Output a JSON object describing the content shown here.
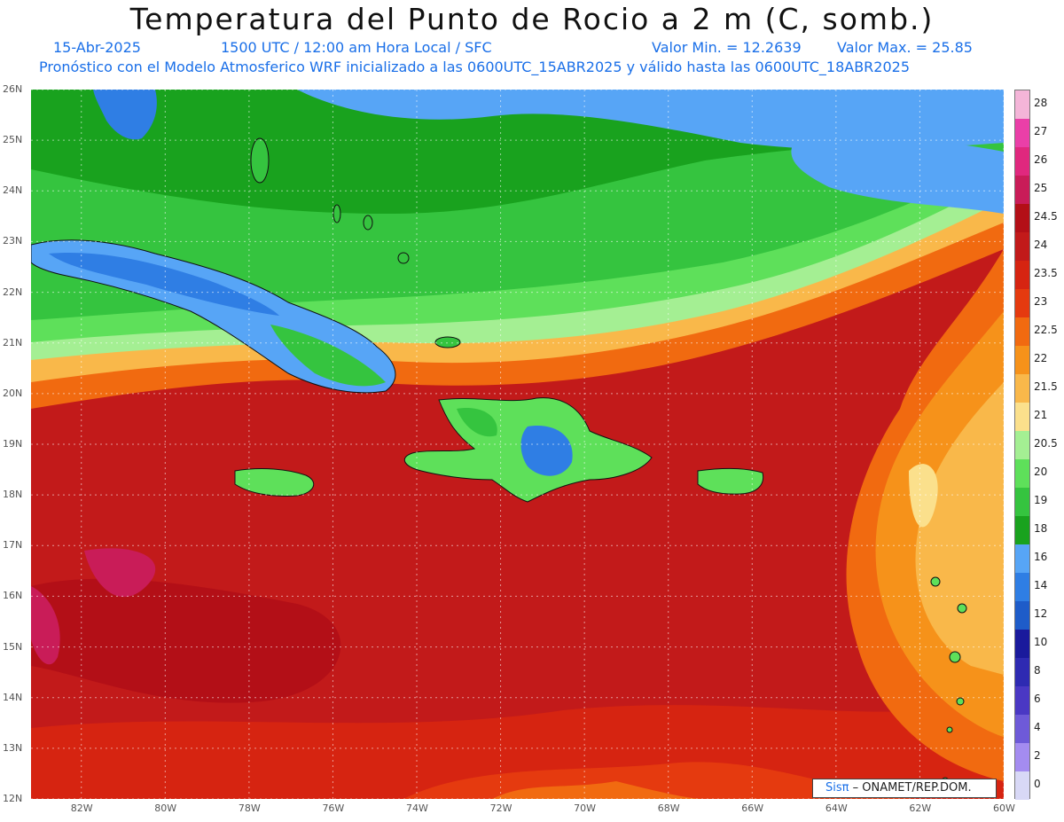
{
  "header": {
    "title": "Temperatura del Punto de Rocio a 2 m (C, somb.)",
    "date": "15-Abr-2025",
    "time": "1500 UTC / 12:00 am Hora Local / SFC",
    "min_label": "Valor Min. = 12.2639",
    "max_label": "Valor Max. = 25.85",
    "model_line": "Pronóstico con el Modelo Atmosferico WRF inicializado a las 0600UTC_15ABR2025 y válido hasta las  0600UTC_18ABR2025"
  },
  "map": {
    "lat_ticks": [
      "26N",
      "25N",
      "24N",
      "23N",
      "22N",
      "21N",
      "20N",
      "19N",
      "18N",
      "17N",
      "16N",
      "15N",
      "14N",
      "13N",
      "12N"
    ],
    "lon_ticks": [
      "82W",
      "80W",
      "78W",
      "76W",
      "74W",
      "72W",
      "70W",
      "68W",
      "66W",
      "64W",
      "62W",
      "60W"
    ],
    "lat_range": [
      12,
      26
    ],
    "lon_range": [
      -83.2,
      -60
    ],
    "grid": "dotted",
    "features": {
      "cuba": "Cuba",
      "hispaniola": "Hispaniola",
      "jamaica": "Jamaica",
      "puerto_rico": "Puerto Rico"
    }
  },
  "legend": {
    "labels": [
      "28",
      "27",
      "26",
      "25",
      "24.5",
      "24",
      "23.5",
      "23",
      "22.5",
      "22",
      "21.5",
      "21",
      "20.5",
      "20",
      "19",
      "18",
      "16",
      "14",
      "12",
      "10",
      "8",
      "6",
      "4",
      "2",
      "0"
    ],
    "colors": [
      "#f4b5d8",
      "#ea3fa8",
      "#e0287e",
      "#c91c58",
      "#b30f17",
      "#c21a1a",
      "#d62411",
      "#e53a0f",
      "#f16a10",
      "#f6921a",
      "#f9b84a",
      "#fbe08c",
      "#a4ef93",
      "#5ee05a",
      "#35c43f",
      "#19a21e",
      "#57a5f6",
      "#2f7ee4",
      "#1e5cc9",
      "#1a1a9c",
      "#2e2ab2",
      "#4a38c4",
      "#6e5ad8",
      "#a48cf0",
      "#d8d8f6"
    ]
  },
  "credit": {
    "brand": "Sisπ",
    "text": "– ONAMET/REP.DOM."
  }
}
